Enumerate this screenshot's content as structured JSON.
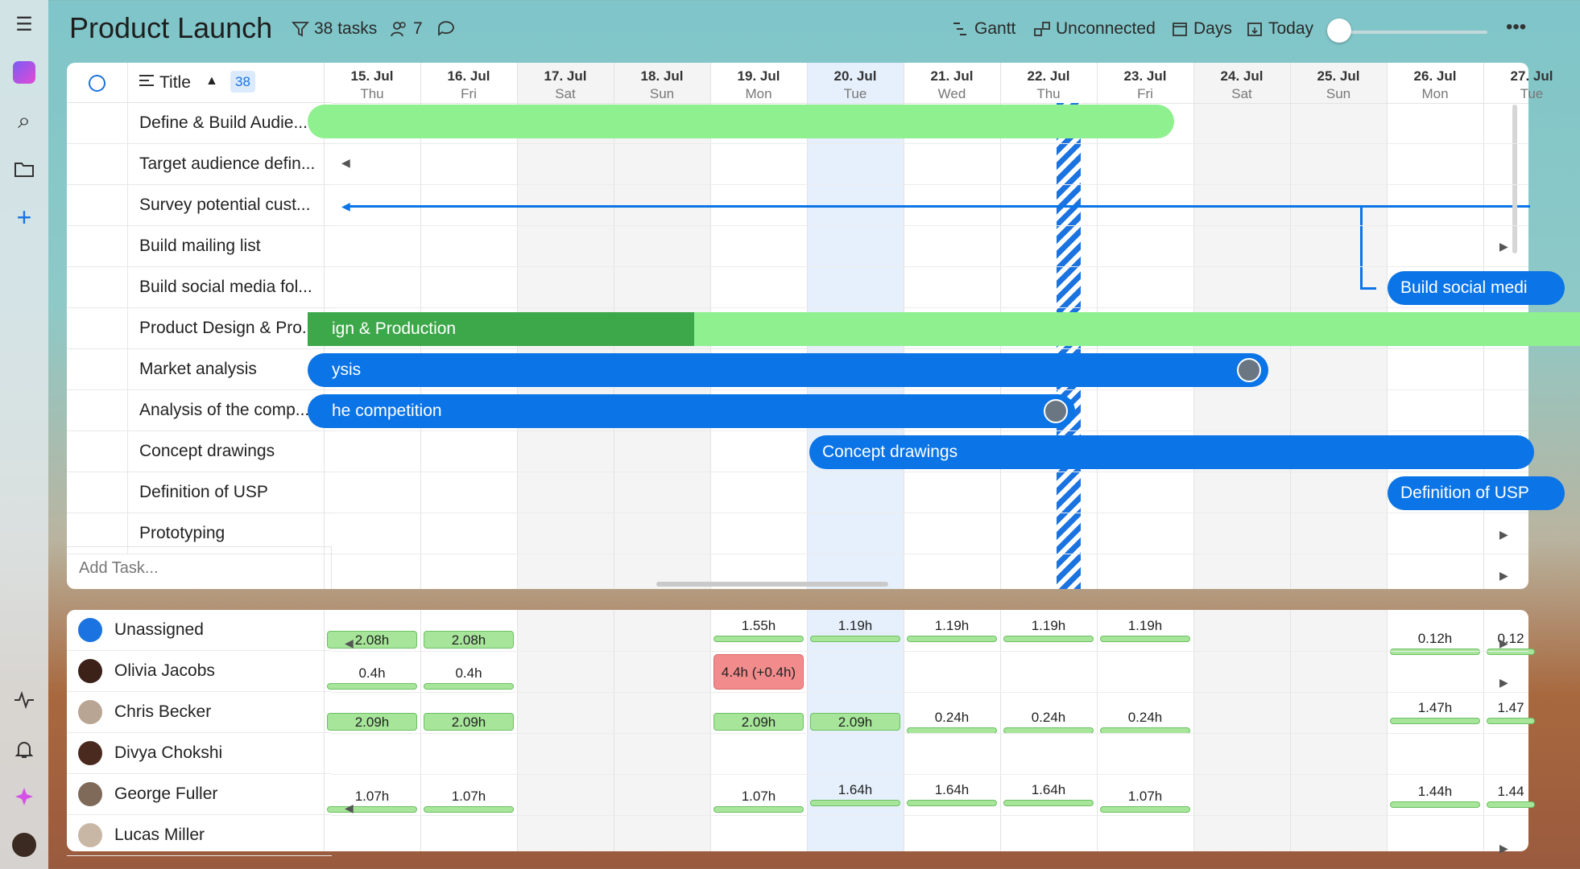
{
  "header": {
    "title": "Product Launch",
    "tasks": "38 tasks",
    "members": "7",
    "gantt": "Gantt",
    "unconnected": "Unconnected",
    "days": "Days",
    "today": "Today",
    "more": "•••"
  },
  "rail": {
    "menu": "☰",
    "search": "⌕",
    "add": "+"
  },
  "columns": {
    "title": "Title",
    "count": "38",
    "add_task": "Add Task..."
  },
  "dates": [
    {
      "d": "15. Jul",
      "w": "Thu"
    },
    {
      "d": "16. Jul",
      "w": "Fri"
    },
    {
      "d": "17. Jul",
      "w": "Sat"
    },
    {
      "d": "18. Jul",
      "w": "Sun"
    },
    {
      "d": "19. Jul",
      "w": "Mon"
    },
    {
      "d": "20. Jul",
      "w": "Tue"
    },
    {
      "d": "21. Jul",
      "w": "Wed"
    },
    {
      "d": "22. Jul",
      "w": "Thu"
    },
    {
      "d": "23. Jul",
      "w": "Fri"
    },
    {
      "d": "24. Jul",
      "w": "Sat"
    },
    {
      "d": "25. Jul",
      "w": "Sun"
    },
    {
      "d": "26. Jul",
      "w": "Mon"
    },
    {
      "d": "27. Jul",
      "w": "Tue"
    }
  ],
  "tasks": [
    "Define & Build Audie...",
    "Target audience defin...",
    "Survey potential cust...",
    "Build mailing list",
    "Build social media fol...",
    "Product Design & Pro...",
    "Market analysis",
    "Analysis of the comp...",
    "Concept drawings",
    "Definition of USP",
    "Prototyping"
  ],
  "bars": {
    "social": "Build social medi",
    "production": "ign & Production",
    "market": "ysis",
    "competition": "he competition",
    "concept": "Concept drawings",
    "usp": "Definition of USP"
  },
  "workload": {
    "people": [
      "Unassigned",
      "Olivia Jacobs",
      "Chris Becker",
      "Divya Chokshi",
      "George Fuller",
      "Lucas Miller"
    ],
    "unassigned": [
      "2.08h",
      "2.08h",
      "1.55h",
      "1.19h",
      "1.19h",
      "1.19h",
      "1.19h",
      "0.12h",
      "0.12"
    ],
    "olivia": [
      "0.4h",
      "0.4h",
      "4.4h (+0.4h)"
    ],
    "chris": [
      "2.09h",
      "2.09h",
      "2.09h",
      "2.09h",
      "0.24h",
      "0.24h",
      "0.24h",
      "1.47h",
      "1.47"
    ],
    "george": [
      "1.07h",
      "1.07h",
      "1.07h",
      "1.64h",
      "1.64h",
      "1.64h",
      "1.07h",
      "1.44h",
      "1.44"
    ]
  },
  "colors": {
    "blue": "#0b74e6",
    "green": "#8ff08f",
    "dark_green": "#3da84a",
    "overload": "#f28b8b",
    "today": "#e6f0fc"
  }
}
